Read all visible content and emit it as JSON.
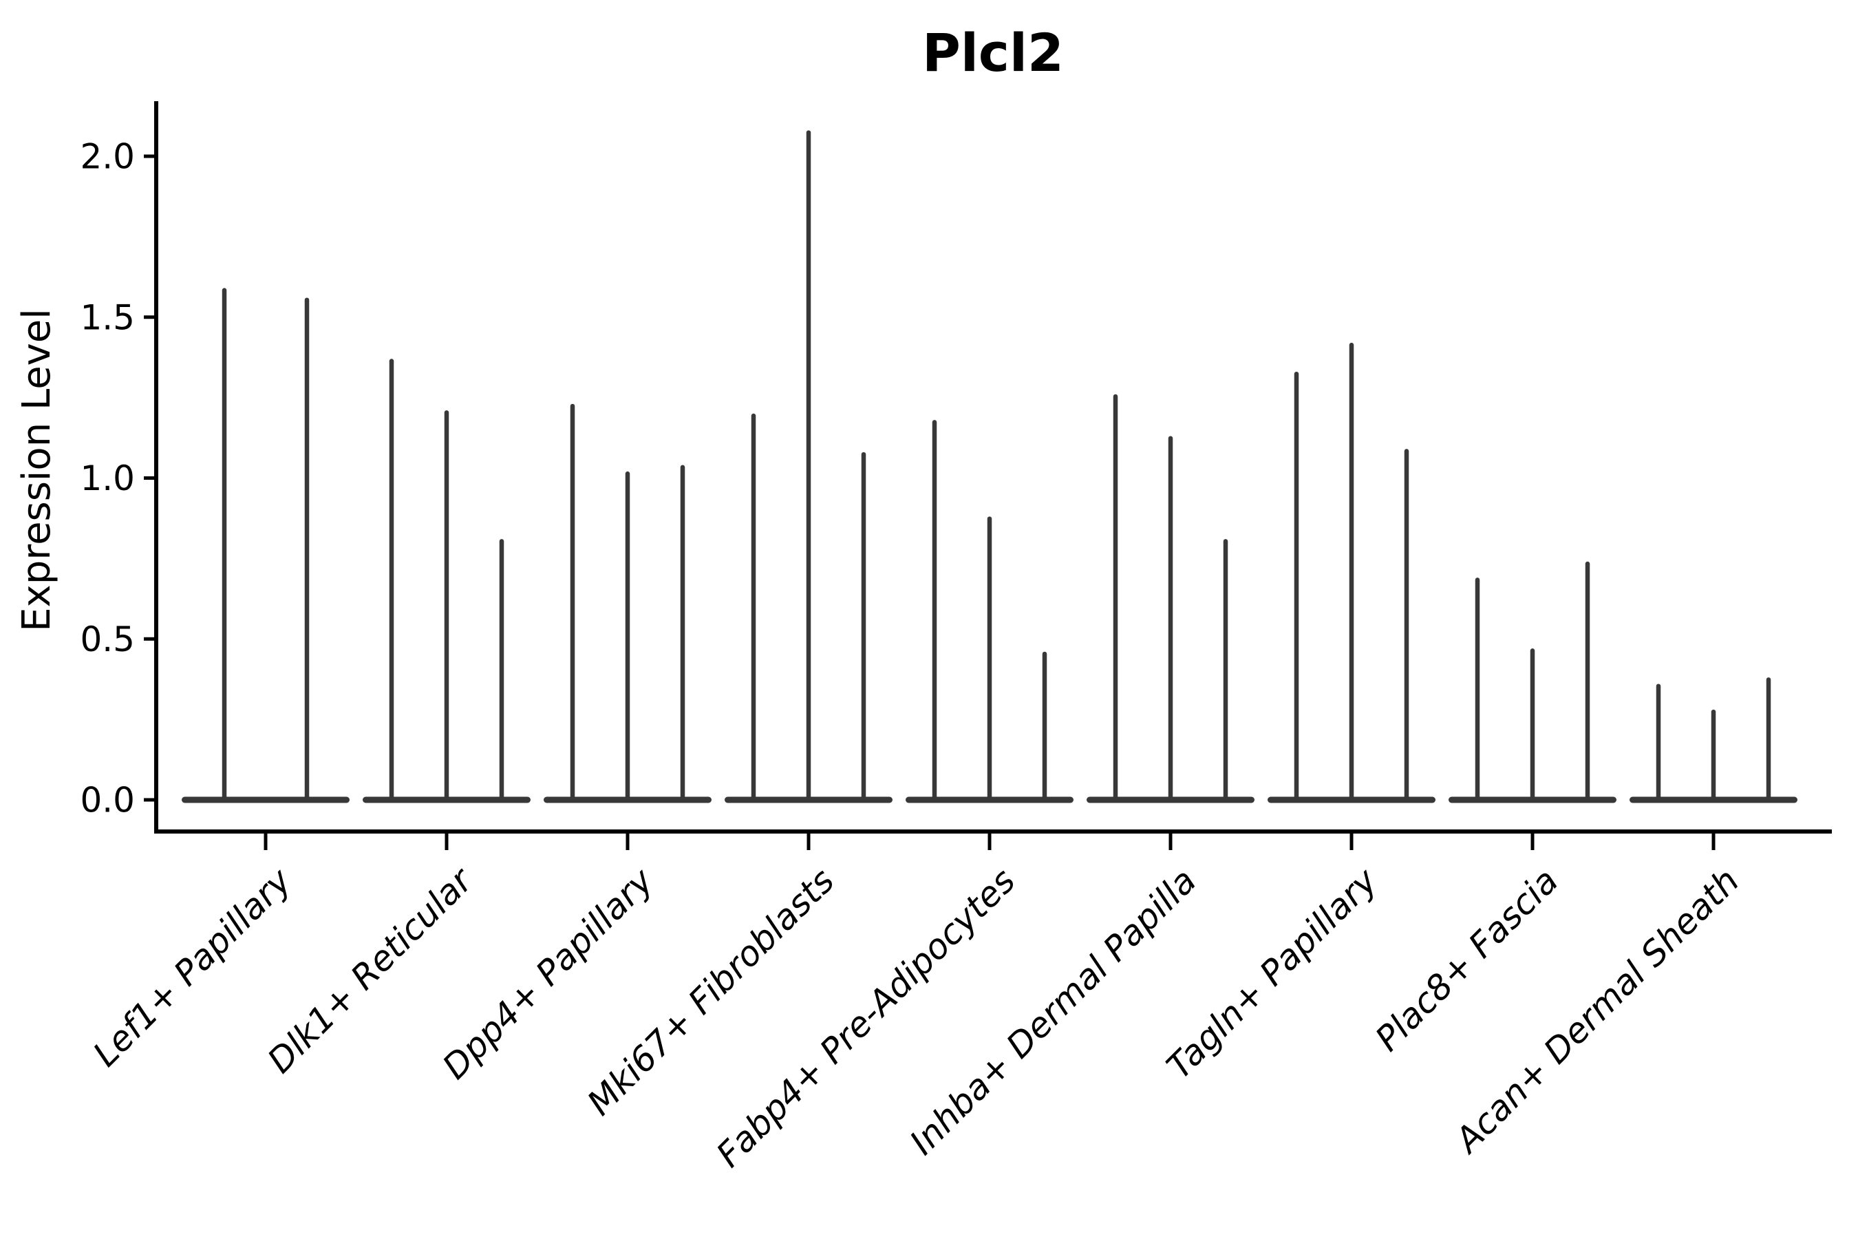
{
  "chart_data": {
    "type": "violin",
    "title": "Plcl2",
    "ylabel": "Expression Level",
    "xlabel": "",
    "ytick_labels": [
      "0.0",
      "0.5",
      "1.0",
      "1.5",
      "2.0"
    ],
    "ytick_values": [
      0.0,
      0.5,
      1.0,
      1.5,
      2.0
    ],
    "ylim": [
      -0.1,
      2.17
    ],
    "grid": false,
    "legend": "none",
    "categories": [
      "Lef1+ Papillary",
      "Dlk1+ Reticular",
      "Dpp4+ Papillary",
      "Mki67+ Fibroblasts",
      "Fabp4+ Pre-Adipocytes",
      "Inhba+ Dermal Papilla",
      "Tagln+ Papillary",
      "Plac8+ Fascia",
      "Acan+ Dermal Sheath"
    ],
    "groups": [
      {
        "category": "Lef1+ Papillary",
        "violin_max_values": [
          1.59,
          1.56
        ]
      },
      {
        "category": "Dlk1+ Reticular",
        "violin_max_values": [
          1.37,
          1.21,
          0.81
        ]
      },
      {
        "category": "Dpp4+ Papillary",
        "violin_max_values": [
          1.23,
          1.02,
          1.04
        ]
      },
      {
        "category": "Mki67+ Fibroblasts",
        "violin_max_values": [
          1.2,
          2.08,
          1.08
        ]
      },
      {
        "category": "Fabp4+ Pre-Adipocytes",
        "violin_max_values": [
          1.18,
          0.88,
          0.46
        ]
      },
      {
        "category": "Inhba+ Dermal Papilla",
        "violin_max_values": [
          1.26,
          1.13,
          0.81
        ]
      },
      {
        "category": "Tagln+ Papillary",
        "violin_max_values": [
          1.33,
          1.42,
          1.09
        ]
      },
      {
        "category": "Plac8+ Fascia",
        "violin_max_values": [
          0.69,
          0.47,
          0.74
        ]
      },
      {
        "category": "Acan+ Dermal Sheath",
        "violin_max_values": [
          0.36,
          0.28,
          0.38
        ]
      }
    ],
    "baseline_value": 0.0,
    "colors": {
      "violin_fill": "#383838",
      "axis": "#000000",
      "text": "#000000",
      "background": "#ffffff"
    }
  }
}
